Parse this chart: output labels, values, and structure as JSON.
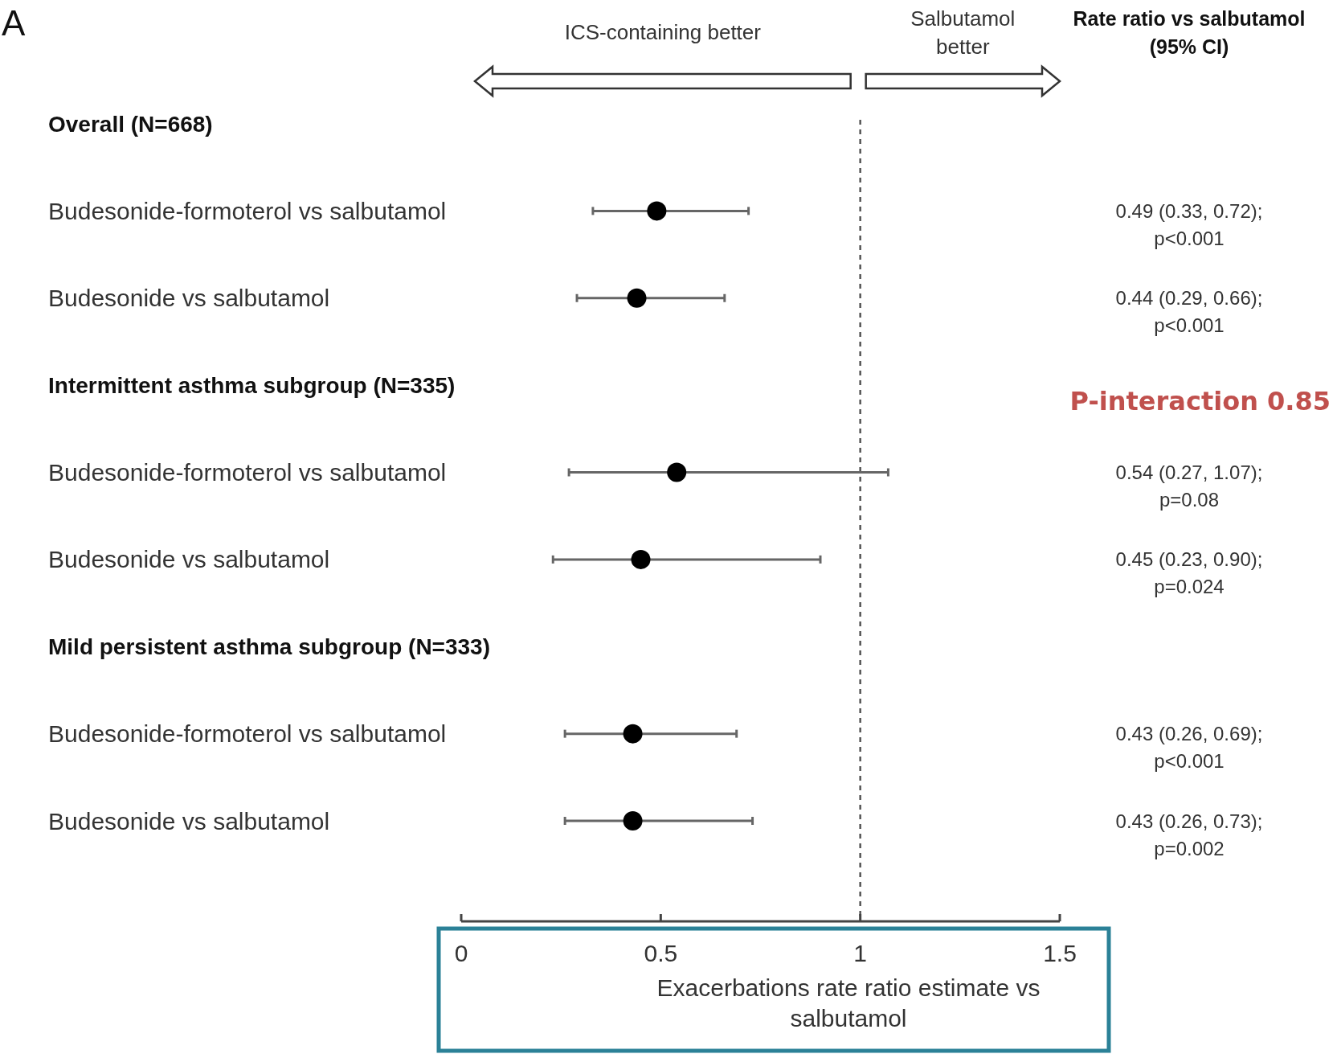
{
  "chart_data": {
    "type": "scatter",
    "title": "A",
    "orientation": "horizontal",
    "categories": [
      "Overall (N=668)",
      "Budesonide-formoterol vs salbutamol",
      "Budesonide vs salbutamol",
      "Intermittent asthma subgroup (N=335)",
      "Budesonide-formoterol vs salbutamol",
      "Budesonide vs salbutamol",
      "Mild persistent asthma subgroup (N=333)",
      "Budesonide-formoterol vs salbutamol",
      "Budesonide vs salbutamol"
    ],
    "values": [
      null,
      0.49,
      0.44,
      null,
      0.54,
      0.45,
      null,
      0.43,
      0.43
    ],
    "errors": [
      null,
      [
        0.33,
        0.72
      ],
      [
        0.29,
        0.66
      ],
      null,
      [
        0.27,
        1.07
      ],
      [
        0.23,
        0.9
      ],
      null,
      [
        0.26,
        0.69
      ],
      [
        0.26,
        0.73
      ]
    ],
    "value_labels": [
      null,
      "0.49 (0.33, 0.72);\np<0.001",
      "0.44 (0.29, 0.66);\np<0.001",
      null,
      "0.54 (0.27, 1.07);\np=0.08",
      "0.45 (0.23, 0.90);\np=0.024",
      null,
      "0.43 (0.26, 0.69);\np<0.001",
      "0.43 (0.26, 0.73);\np=0.002"
    ],
    "color": "#000000",
    "marker": "circle",
    "xlim": [
      0,
      1.5
    ],
    "xticks": [
      0,
      0.5,
      1,
      1.5
    ],
    "xlabel": "Exacerbations rate ratio estimate vs salbutamol",
    "ref_lines": [
      {
        "axis": "x",
        "value": 1,
        "line_style": "dashed"
      }
    ],
    "annotations": [
      "ICS-containing better",
      "Salbutamol better",
      "Rate ratio vs salbutamol (95% CI)",
      "P-interaction 0.85"
    ]
  }
}
